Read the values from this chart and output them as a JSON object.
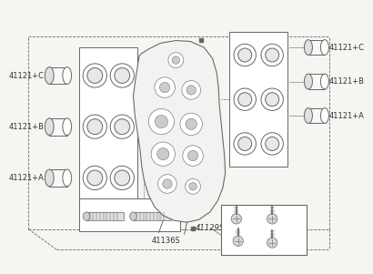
{
  "bg_color": "#f5f5f2",
  "line_color": "#666666",
  "label_color": "#333333",
  "labels_left": [
    "41121+A",
    "41121+B",
    "41121+C"
  ],
  "labels_right": [
    "41121+A",
    "41121+B",
    "41121+C"
  ],
  "label_top": "41129S",
  "label_bottom": "41136S",
  "font_size": 6.0,
  "bullet_label": "*"
}
